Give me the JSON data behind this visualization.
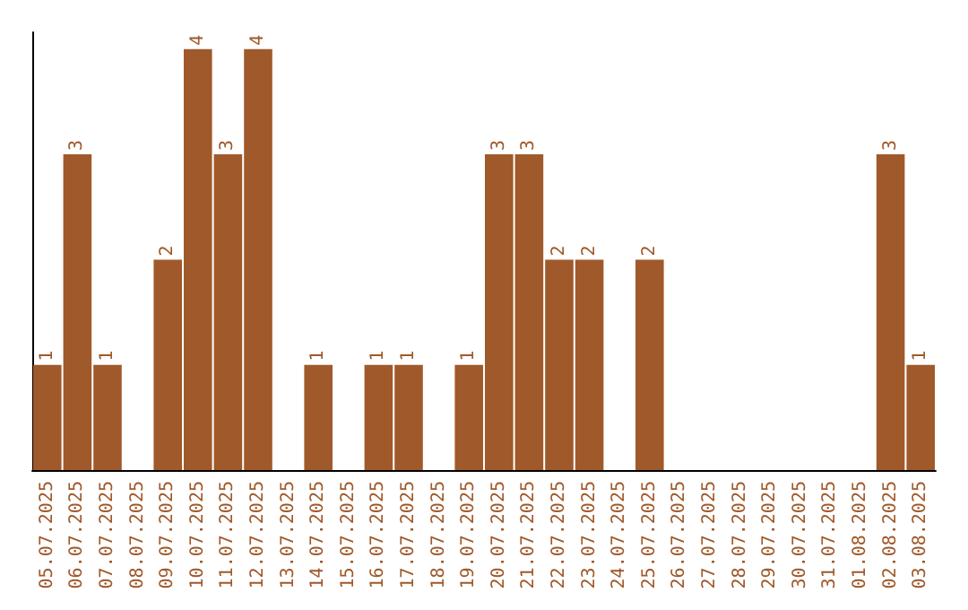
{
  "chart_data": {
    "type": "bar",
    "categories": [
      "05.07.2025",
      "06.07.2025",
      "07.07.2025",
      "08.07.2025",
      "09.07.2025",
      "10.07.2025",
      "11.07.2025",
      "12.07.2025",
      "13.07.2025",
      "14.07.2025",
      "15.07.2025",
      "16.07.2025",
      "17.07.2025",
      "18.07.2025",
      "19.07.2025",
      "20.07.2025",
      "21.07.2025",
      "22.07.2025",
      "23.07.2025",
      "24.07.2025",
      "25.07.2025",
      "26.07.2025",
      "27.07.2025",
      "28.07.2025",
      "29.07.2025",
      "30.07.2025",
      "31.07.2025",
      "01.08.2025",
      "02.08.2025",
      "03.08.2025"
    ],
    "values": [
      1,
      3,
      1,
      0,
      2,
      4,
      3,
      4,
      0,
      1,
      0,
      1,
      1,
      0,
      1,
      3,
      3,
      2,
      2,
      0,
      2,
      0,
      0,
      0,
      0,
      0,
      0,
      0,
      3,
      1
    ],
    "value_labels": [
      "1",
      "3",
      "1",
      null,
      "2",
      "4",
      "3",
      "4",
      null,
      "1",
      null,
      "1",
      "1",
      null,
      "1",
      "3",
      "3",
      "2",
      "2",
      null,
      "2",
      null,
      null,
      null,
      null,
      null,
      null,
      null,
      "3",
      "1"
    ],
    "color": "#a0592a",
    "tick_labels": "x",
    "grid": false
  }
}
